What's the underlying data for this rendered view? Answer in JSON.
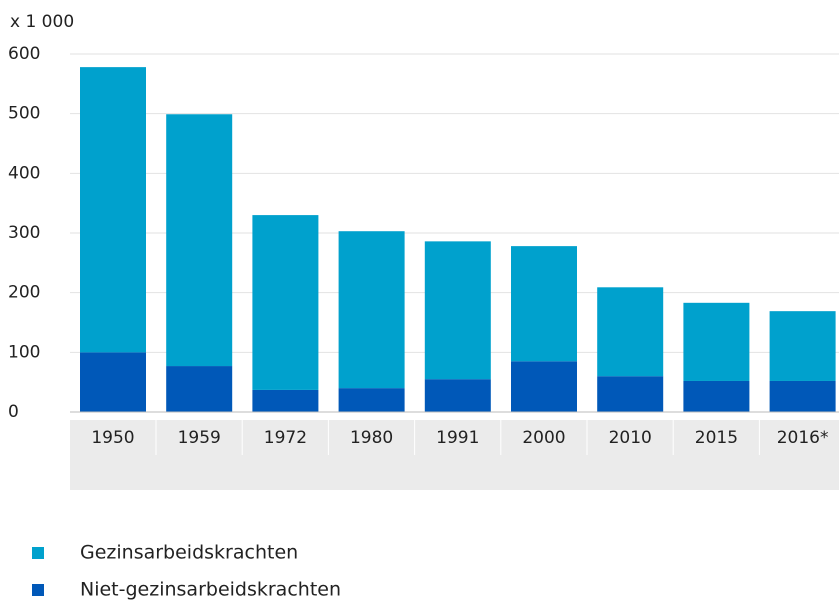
{
  "chart_data": {
    "type": "stacked_bar",
    "y_unit_label": "x 1 000",
    "categories": [
      "1950",
      "1959",
      "1972",
      "1980",
      "1991",
      "2000",
      "2010",
      "2015",
      "2016*"
    ],
    "series": [
      {
        "name": "Niet-gezinsarbeidskrachten",
        "color": "#0058b8",
        "values": [
          100,
          77,
          37,
          40,
          55,
          85,
          60,
          52,
          52
        ]
      },
      {
        "name": "Gezinsarbeidskrachten",
        "color": "#00a1cd",
        "values": [
          478,
          422,
          293,
          263,
          231,
          193,
          149,
          131,
          117
        ]
      }
    ],
    "legend_order": [
      1,
      0
    ],
    "ylim": [
      0,
      600
    ],
    "yticks": [
      0,
      100,
      200,
      300,
      400,
      500,
      600
    ],
    "grid": true
  }
}
